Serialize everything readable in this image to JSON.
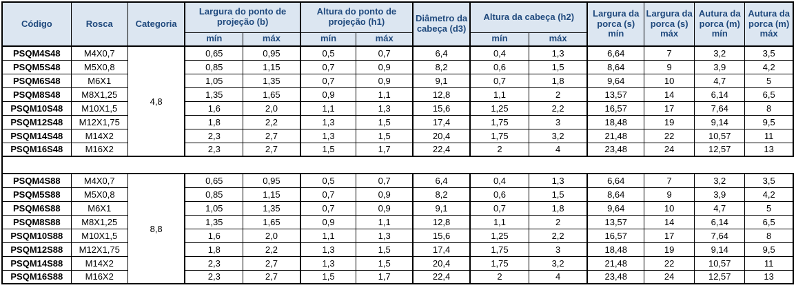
{
  "table": {
    "header": {
      "codigo": "Código",
      "rosca": "Rosca",
      "categoria": "Categoria",
      "largura_ponto": "Largura do ponto de projeção (b)",
      "altura_ponto": "Altura do ponto de projeção (h1)",
      "diametro_cabeca": "Diâmetro da cabeça (d3)",
      "altura_cabeca": "Altura da cabeça (h2)",
      "largura_porca_min": "Largura da porca (s) mín",
      "largura_porca_max": "Largura da porca (s) máx",
      "altura_porca_min": "Autura da porca (m) mín",
      "altura_porca_max": "Autura da porca (m) máx",
      "min": "mín",
      "max": "máx"
    },
    "column_keys": [
      "codigo",
      "rosca",
      "b_min",
      "b_max",
      "h1_min",
      "h1_max",
      "d3",
      "h2_min",
      "h2_max",
      "s_min",
      "s_max",
      "m_min",
      "m_max"
    ],
    "blocks": [
      {
        "categoria": "4,8",
        "rows": [
          [
            "PSQM4S48",
            "M4X0,7",
            "0,65",
            "0,95",
            "0,5",
            "0,7",
            "6,4",
            "0,4",
            "1,3",
            "6,64",
            "7",
            "3,2",
            "3,5"
          ],
          [
            "PSQM5S48",
            "M5X0,8",
            "0,85",
            "1,15",
            "0,7",
            "0,9",
            "8,2",
            "0,6",
            "1,5",
            "8,64",
            "9",
            "3,9",
            "4,2"
          ],
          [
            "PSQM6S48",
            "M6X1",
            "1,05",
            "1,35",
            "0,7",
            "0,9",
            "9,1",
            "0,7",
            "1,8",
            "9,64",
            "10",
            "4,7",
            "5"
          ],
          [
            "PSQM8S48",
            "M8X1,25",
            "1,35",
            "1,65",
            "0,9",
            "1,1",
            "12,8",
            "1,1",
            "2",
            "13,57",
            "14",
            "6,14",
            "6,5"
          ],
          [
            "PSQM10S48",
            "M10X1,5",
            "1,6",
            "2,0",
            "1,1",
            "1,3",
            "15,6",
            "1,25",
            "2,2",
            "16,57",
            "17",
            "7,64",
            "8"
          ],
          [
            "PSQM12S48",
            "M12X1,75",
            "1,8",
            "2,2",
            "1,3",
            "1,5",
            "17,4",
            "1,75",
            "3",
            "18,48",
            "19",
            "9,14",
            "9,5"
          ],
          [
            "PSQM14S48",
            "M14X2",
            "2,3",
            "2,7",
            "1,3",
            "1,5",
            "20,4",
            "1,75",
            "3,2",
            "21,48",
            "22",
            "10,57",
            "11"
          ],
          [
            "PSQM16S48",
            "M16X2",
            "2,3",
            "2,7",
            "1,5",
            "1,7",
            "22,4",
            "2",
            "4",
            "23,48",
            "24",
            "12,57",
            "13"
          ]
        ]
      },
      {
        "categoria": "8,8",
        "rows": [
          [
            "PSQM4S88",
            "M4X0,7",
            "0,65",
            "0,95",
            "0,5",
            "0,7",
            "6,4",
            "0,4",
            "1,3",
            "6,64",
            "7",
            "3,2",
            "3,5"
          ],
          [
            "PSQM5S88",
            "M5X0,8",
            "0,85",
            "1,15",
            "0,7",
            "0,9",
            "8,2",
            "0,6",
            "1,5",
            "8,64",
            "9",
            "3,9",
            "4,2"
          ],
          [
            "PSQM6S88",
            "M6X1",
            "1,05",
            "1,35",
            "0,7",
            "0,9",
            "9,1",
            "0,7",
            "1,8",
            "9,64",
            "10",
            "4,7",
            "5"
          ],
          [
            "PSQM8S88",
            "M8X1,25",
            "1,35",
            "1,65",
            "0,9",
            "1,1",
            "12,8",
            "1,1",
            "2",
            "13,57",
            "14",
            "6,14",
            "6,5"
          ],
          [
            "PSQM10S88",
            "M10X1,5",
            "1,6",
            "2,0",
            "1,1",
            "1,3",
            "15,6",
            "1,25",
            "2,2",
            "16,57",
            "17",
            "7,64",
            "8"
          ],
          [
            "PSQM12S88",
            "M12X1,75",
            "1,8",
            "2,2",
            "1,3",
            "1,5",
            "17,4",
            "1,75",
            "3",
            "18,48",
            "19",
            "9,14",
            "9,5"
          ],
          [
            "PSQM14S88",
            "M14X2",
            "2,3",
            "2,7",
            "1,3",
            "1,5",
            "20,4",
            "1,75",
            "3,2",
            "21,48",
            "22",
            "10,57",
            "11"
          ],
          [
            "PSQM16S88",
            "M16X2",
            "2,3",
            "2,7",
            "1,5",
            "1,7",
            "22,4",
            "2",
            "4",
            "23,48",
            "24",
            "12,57",
            "13"
          ]
        ]
      }
    ],
    "colors": {
      "header_bg": "#DCE6F1",
      "header_text": "#1F497D",
      "border": "#000000",
      "body_bg": "#FFFFFF",
      "body_text": "#000000"
    }
  }
}
